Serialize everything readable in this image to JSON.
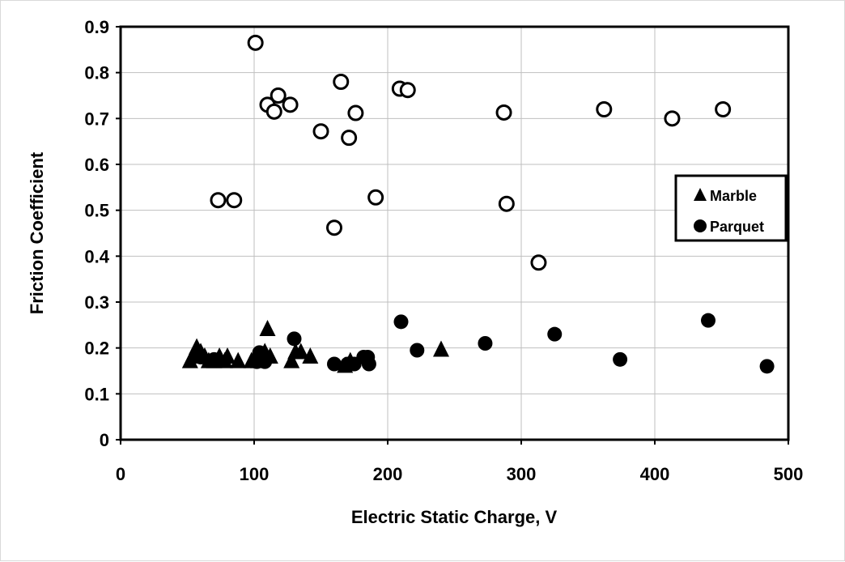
{
  "chart_data": {
    "type": "scatter",
    "xlabel": "Electric Static Charge, V",
    "ylabel": "Friction Coefficient",
    "xlim": [
      0,
      500
    ],
    "ylim": [
      0,
      0.9
    ],
    "x_ticks": [
      "0",
      "100",
      "200",
      "300",
      "400",
      "500"
    ],
    "y_ticks": [
      "0",
      "0.1",
      "0.2",
      "0.3",
      "0.4",
      "0.5",
      "0.6",
      "0.7",
      "0.8",
      "0.9"
    ],
    "grid": true,
    "legend_position": "right",
    "series": [
      {
        "name": "Marble",
        "marker": "triangle-filled",
        "color": "#000000",
        "points": [
          [
            52,
            0.17
          ],
          [
            55,
            0.18
          ],
          [
            57,
            0.2
          ],
          [
            60,
            0.19
          ],
          [
            63,
            0.18
          ],
          [
            66,
            0.17
          ],
          [
            70,
            0.17
          ],
          [
            74,
            0.18
          ],
          [
            78,
            0.17
          ],
          [
            80,
            0.18
          ],
          [
            88,
            0.17
          ],
          [
            98,
            0.17
          ],
          [
            103,
            0.17
          ],
          [
            106,
            0.18
          ],
          [
            108,
            0.19
          ],
          [
            110,
            0.24
          ],
          [
            112,
            0.18
          ],
          [
            128,
            0.17
          ],
          [
            131,
            0.19
          ],
          [
            135,
            0.19
          ],
          [
            142,
            0.18
          ],
          [
            168,
            0.16
          ],
          [
            172,
            0.17
          ],
          [
            240,
            0.195
          ]
        ]
      },
      {
        "name": "Parquet",
        "marker": "circle-filled",
        "color": "#000000",
        "points": [
          [
            60,
            0.18
          ],
          [
            70,
            0.175
          ],
          [
            102,
            0.17
          ],
          [
            104,
            0.19
          ],
          [
            108,
            0.17
          ],
          [
            130,
            0.22
          ],
          [
            160,
            0.165
          ],
          [
            170,
            0.165
          ],
          [
            175,
            0.165
          ],
          [
            182,
            0.18
          ],
          [
            185,
            0.18
          ],
          [
            186,
            0.165
          ],
          [
            210,
            0.257
          ],
          [
            222,
            0.195
          ],
          [
            273,
            0.21
          ],
          [
            325,
            0.23
          ],
          [
            374,
            0.175
          ],
          [
            440,
            0.26
          ],
          [
            484,
            0.16
          ]
        ]
      },
      {
        "marker": "circle-open",
        "color": "#000000",
        "points": [
          [
            101,
            0.865
          ],
          [
            73,
            0.522
          ],
          [
            85,
            0.522
          ],
          [
            110,
            0.73
          ],
          [
            115,
            0.715
          ],
          [
            118,
            0.75
          ],
          [
            127,
            0.73
          ],
          [
            150,
            0.672
          ],
          [
            160,
            0.462
          ],
          [
            165,
            0.78
          ],
          [
            171,
            0.658
          ],
          [
            176,
            0.712
          ],
          [
            191,
            0.528
          ],
          [
            209,
            0.765
          ],
          [
            215,
            0.762
          ],
          [
            287,
            0.713
          ],
          [
            289,
            0.514
          ],
          [
            313,
            0.386
          ],
          [
            362,
            0.72
          ],
          [
            413,
            0.7
          ],
          [
            451,
            0.72
          ]
        ]
      }
    ]
  }
}
